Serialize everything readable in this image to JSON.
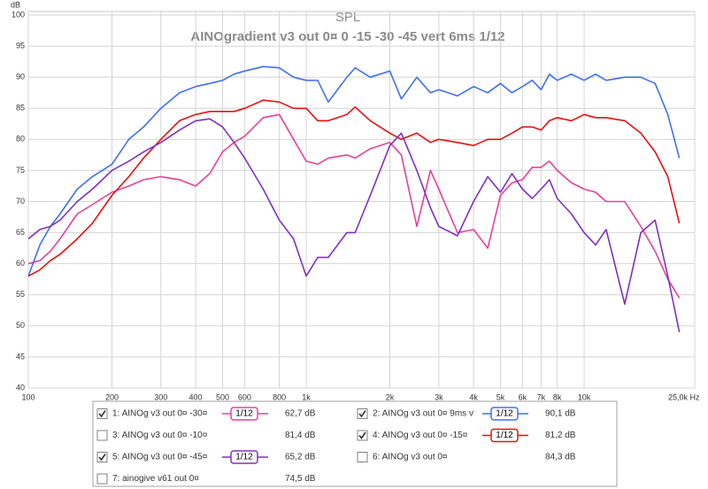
{
  "chart_data": {
    "type": "line",
    "title": "SPL",
    "subtitle": "AINOgradient v3 out 0¤ 0 -15 -30 -45 vert 6ms 1/12",
    "ylabel": "dB",
    "xscale": "log",
    "grid": true,
    "xlim": [
      100,
      25000
    ],
    "ylim": [
      40,
      100
    ],
    "yticks": [
      40,
      45,
      50,
      55,
      60,
      65,
      70,
      75,
      80,
      85,
      90,
      95,
      100
    ],
    "xticks": [
      100,
      200,
      300,
      400,
      500,
      600,
      800,
      {
        "value": 1000,
        "label": "1k"
      },
      {
        "value": 2000,
        "label": "2k"
      },
      {
        "value": 3000,
        "label": "3k"
      },
      {
        "value": 4000,
        "label": "4k"
      },
      {
        "value": 5000,
        "label": "5k"
      },
      {
        "value": 6000,
        "label": "6k"
      },
      {
        "value": 7000,
        "label": "7k"
      },
      {
        "value": 8000,
        "label": "8k"
      },
      {
        "value": 10000,
        "label": "10k"
      },
      {
        "value": 25000,
        "label": "25,0k Hz"
      }
    ],
    "x": [
      100,
      110,
      120,
      130,
      150,
      170,
      200,
      230,
      260,
      300,
      350,
      400,
      450,
      500,
      550,
      600,
      700,
      800,
      900,
      1000,
      1100,
      1200,
      1400,
      1500,
      1700,
      2000,
      2200,
      2500,
      2800,
      3000,
      3500,
      4000,
      4500,
      5000,
      5500,
      6000,
      6500,
      7000,
      7500,
      8000,
      9000,
      10000,
      11000,
      12000,
      14000,
      16000,
      18000,
      20000,
      22000
    ],
    "series": [
      {
        "name": "1: AINOg v3 out 0¤ -30¤",
        "color": "#e8409a",
        "visible": true,
        "smoothing": "1/12",
        "readout": "62,7 dB",
        "values": [
          60,
          60.5,
          62,
          64,
          68,
          69.5,
          71.5,
          72.5,
          73.5,
          74,
          73.5,
          72.5,
          74.5,
          78,
          79.5,
          80.5,
          83.5,
          84,
          80,
          76.5,
          76,
          77,
          77.5,
          77,
          78.5,
          79.5,
          77.5,
          66,
          75,
          72,
          65,
          65.5,
          62.5,
          71,
          73,
          73.5,
          75.5,
          75.5,
          76.5,
          75,
          73,
          72,
          71.5,
          70,
          70,
          66,
          62,
          57.5,
          54.5
        ]
      },
      {
        "name": "2: AINOg v3 out 0¤ 9ms v",
        "color": "#4070f0",
        "visible": true,
        "smoothing": "1/12",
        "readout": "90,1 dB",
        "values": [
          58,
          63,
          66,
          68,
          72,
          74,
          76,
          80,
          82,
          85,
          87.5,
          88.5,
          89,
          89.5,
          90.5,
          91,
          91.7,
          91.5,
          90,
          89.5,
          89.5,
          86,
          90,
          91.5,
          90,
          91,
          86.5,
          90,
          87.5,
          88,
          87,
          88.5,
          87.5,
          89,
          87.5,
          88.5,
          89.5,
          88,
          90.5,
          89.5,
          90.5,
          89.5,
          90.5,
          89.5,
          90,
          90,
          89,
          84,
          77
        ]
      },
      {
        "name": "3: AINOg v3 out 0¤ -10¤",
        "color": "#20b020",
        "visible": false,
        "readout": "81,4 dB"
      },
      {
        "name": "4: AINOg v3 out 0¤ -15¤",
        "color": "#e81010",
        "visible": true,
        "smoothing": "1/12",
        "readout": "81,2 dB",
        "values": [
          58,
          59,
          60.5,
          61.5,
          64,
          66.5,
          71,
          74,
          77,
          80,
          83,
          84,
          84.5,
          84.5,
          84.5,
          85,
          86.3,
          86,
          85,
          85,
          83,
          83,
          84,
          85.2,
          83,
          81,
          80,
          81,
          79.5,
          80,
          79.5,
          79,
          80,
          80,
          81,
          82,
          82,
          81.5,
          83,
          83.5,
          83,
          84,
          83.5,
          83.5,
          83,
          81,
          78,
          74,
          66.5
        ]
      },
      {
        "name": "5: AINOg v3 out 0¤ -45¤",
        "color": "#8030c0",
        "visible": true,
        "smoothing": "1/12",
        "readout": "65,2 dB",
        "values": [
          64,
          65.5,
          66,
          67,
          70,
          72,
          75,
          76.5,
          78,
          79.5,
          81.5,
          83,
          83.3,
          82,
          79.5,
          77,
          72,
          67,
          64,
          58,
          61,
          61,
          65,
          65,
          71,
          79,
          81,
          75,
          69,
          66,
          64.5,
          70,
          74,
          71.5,
          74.5,
          72,
          70.5,
          72,
          73.5,
          70.5,
          68,
          65,
          63,
          65.5,
          53.5,
          65,
          67,
          58,
          49
        ]
      },
      {
        "name": "6: AINOg v3 out 0¤",
        "color": "#e81010",
        "visible": false,
        "readout": "84,3 dB"
      },
      {
        "name": "7: ainogive v61 out 0¤",
        "color": "#5060e0",
        "visible": false,
        "readout": "74,5 dB"
      }
    ]
  }
}
